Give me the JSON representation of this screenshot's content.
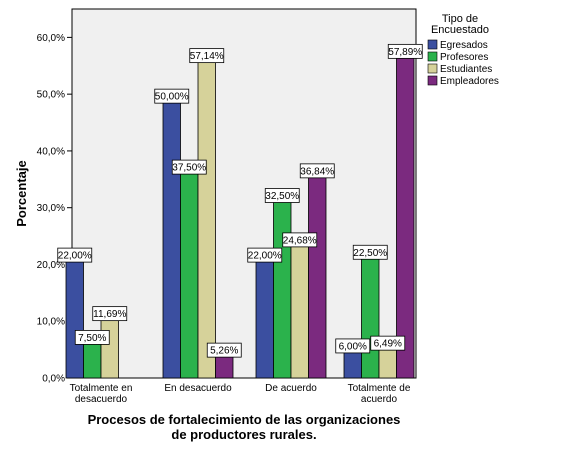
{
  "chart_data": {
    "type": "bar",
    "categories": [
      [
        "Totalmente en",
        "desacuerdo"
      ],
      [
        "En desacuerdo"
      ],
      [
        "De acuerdo"
      ],
      [
        "Totalmente de",
        "acuerdo"
      ]
    ],
    "series": [
      {
        "name": "Egresados",
        "color": "#3b4fa0",
        "values": [
          22.0,
          50.0,
          22.0,
          6.0
        ],
        "labels": [
          "22,00%",
          "50,00%",
          "22,00%",
          "6,00%"
        ]
      },
      {
        "name": "Profesores",
        "color": "#2bb24c",
        "values": [
          7.5,
          37.5,
          32.5,
          22.5
        ],
        "labels": [
          "7,50%",
          "37,50%",
          "32,50%",
          "22,50%"
        ]
      },
      {
        "name": "Estudiantes",
        "color": "#d6d29a",
        "values": [
          11.69,
          57.14,
          24.68,
          6.49
        ],
        "labels": [
          "11,69%",
          "57,14%",
          "24,68%",
          "6,49%"
        ]
      },
      {
        "name": "Empleadores",
        "color": "#7b2a7f",
        "values": [
          0,
          5.26,
          36.84,
          57.89
        ],
        "labels": [
          "",
          "5,26%",
          "36,84%",
          "57,89%"
        ]
      }
    ],
    "xlabel": [
      "Procesos de fortalecimiento de las organizaciones",
      "de productores rurales."
    ],
    "ylabel": "Porcentaje",
    "ylim": [
      0,
      65
    ],
    "yticks": [
      0,
      10,
      20,
      30,
      40,
      50,
      60
    ],
    "ytick_labels": [
      "0,0%",
      "10,0%",
      "20,0%",
      "30,0%",
      "40,0%",
      "50,0%",
      "60,0%"
    ],
    "legend_title": [
      "Tipo de",
      "Encuestado"
    ],
    "legend_position": "right",
    "plot_background": "#f0f0f0",
    "grid": false
  }
}
